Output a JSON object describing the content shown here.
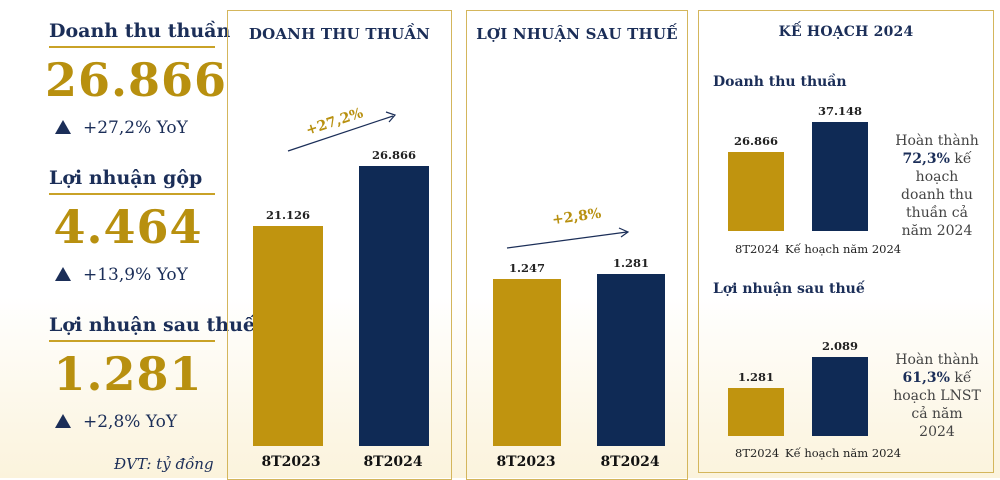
{
  "kpis": [
    {
      "title": "Doanh thu thuần",
      "value": "26.866",
      "yoy": "+27,2% YoY"
    },
    {
      "title": "Lợi nhuận gộp",
      "value": "4.464",
      "yoy": "+13,9% YoY"
    },
    {
      "title": "Lợi nhuận sau thuế",
      "value": "1.281",
      "yoy": "+2,8% YoY"
    }
  ],
  "unit_note": "ĐVT: tỷ đồng",
  "colors": {
    "gold": "#c0940f",
    "navy": "#0f2a55",
    "border": "#d4b65c"
  },
  "chart_data": [
    {
      "type": "bar",
      "title": "DOANH THU THUẦN",
      "categories": [
        "8T2023",
        "8T2024"
      ],
      "values": [
        21126,
        26866
      ],
      "labels": [
        "21.126",
        "26.866"
      ],
      "growth": "+27,2%"
    },
    {
      "type": "bar",
      "title": "LỢI NHUẬN SAU THUẾ",
      "categories": [
        "8T2023",
        "8T2024"
      ],
      "values": [
        1247,
        1281
      ],
      "labels": [
        "1.247",
        "1.281"
      ],
      "growth": "+2,8%"
    },
    {
      "type": "bar",
      "title": "Doanh thu thuần",
      "categories": [
        "8T2024",
        "Kế hoạch năm 2024"
      ],
      "values": [
        26866,
        37148
      ],
      "labels": [
        "26.866",
        "37.148"
      ]
    },
    {
      "type": "bar",
      "title": "Lợi nhuận sau thuế",
      "categories": [
        "8T2024",
        "Kế hoạch năm 2024"
      ],
      "values": [
        1281,
        2089
      ],
      "labels": [
        "1.281",
        "2.089"
      ]
    }
  ],
  "plan": {
    "title": "KẾ HOẠCH 2024",
    "revenue_note": {
      "pre": "Hoàn thành",
      "pct": "72,3%",
      "mid": "kế",
      "rest": "hoạch doanh thu thuần cả năm 2024"
    },
    "profit_note": {
      "pre": "Hoàn thành",
      "pct": "61,3%",
      "mid": "kế",
      "rest": "hoạch LNST cả năm 2024"
    }
  }
}
